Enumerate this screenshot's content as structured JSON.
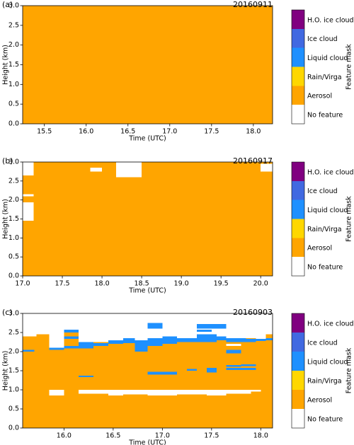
{
  "chart_data": [
    {
      "type": "heatmap",
      "panel_label": "(a)",
      "title": "20160911",
      "xlabel": "Time (UTC)",
      "ylabel": "Height (km)",
      "xlim": [
        15.24,
        18.23
      ],
      "ylim": [
        0,
        3
      ],
      "xticks": [
        15.5,
        {
          "value": 16,
          "label": "16.0"
        },
        16.5,
        {
          "value": 17,
          "label": "17.0"
        },
        17.5,
        {
          "value": 18,
          "label": "18.0"
        }
      ],
      "yticks": [
        {
          "value": 0,
          "label": "0.0"
        },
        0.5,
        {
          "value": 1,
          "label": "1.0"
        },
        1.5,
        {
          "value": 2,
          "label": "2.0"
        },
        2.5,
        {
          "value": 3,
          "label": "3.0"
        }
      ],
      "colorbar": {
        "label": "Feature mask",
        "classes": [
          {
            "label": "No feature",
            "color": "#ffffff"
          },
          {
            "label": "Aerosol",
            "color": "#ffa500"
          },
          {
            "label": "Rain/Virga",
            "color": "#ffd700"
          },
          {
            "label": "Liquid cloud",
            "color": "#1e90ff"
          },
          {
            "label": "Ice cloud",
            "color": "#4169e1"
          },
          {
            "label": "H.O. ice cloud",
            "color": "#800080"
          }
        ]
      },
      "blocks": [
        {
          "x": [
            15.24,
            18.23
          ],
          "y": [
            0,
            3
          ],
          "value": 1
        }
      ]
    },
    {
      "type": "heatmap",
      "panel_label": "(b)",
      "title": "20160917",
      "xlabel": "Time (UTC)",
      "ylabel": "Height (km)",
      "xlim": [
        17.0,
        20.15
      ],
      "ylim": [
        0,
        3
      ],
      "xticks": [
        {
          "value": 17,
          "label": "17.0"
        },
        17.5,
        {
          "value": 18,
          "label": "18.0"
        },
        18.5,
        {
          "value": 19,
          "label": "19.0"
        },
        19.5,
        {
          "value": 20,
          "label": "20.0"
        }
      ],
      "yticks": [
        {
          "value": 0,
          "label": "0.0"
        },
        0.5,
        {
          "value": 1,
          "label": "1.0"
        },
        1.5,
        {
          "value": 2,
          "label": "2.0"
        },
        2.5,
        {
          "value": 3,
          "label": "3.0"
        }
      ],
      "colorbar": {
        "label": "Feature mask",
        "classes": [
          {
            "label": "No feature",
            "color": "#ffffff"
          },
          {
            "label": "Aerosol",
            "color": "#ffa500"
          },
          {
            "label": "Rain/Virga",
            "color": "#ffd700"
          },
          {
            "label": "Liquid cloud",
            "color": "#1e90ff"
          },
          {
            "label": "Ice cloud",
            "color": "#4169e1"
          },
          {
            "label": "H.O. ice cloud",
            "color": "#800080"
          }
        ]
      },
      "blocks": [
        {
          "x": [
            17.0,
            20.15
          ],
          "y": [
            0,
            3
          ],
          "value": 1
        },
        {
          "x": [
            17.0,
            17.14
          ],
          "y": [
            2.65,
            3.0
          ],
          "value": 0
        },
        {
          "x": [
            17.0,
            17.14
          ],
          "y": [
            2.1,
            2.15
          ],
          "value": 0
        },
        {
          "x": [
            17.0,
            17.14
          ],
          "y": [
            1.45,
            1.94
          ],
          "value": 0
        },
        {
          "x": [
            18.18,
            18.5
          ],
          "y": [
            2.6,
            3.0
          ],
          "value": 1
        },
        {
          "x": [
            18.18,
            18.5
          ],
          "y": [
            2.6,
            3.0
          ],
          "value": 0
        },
        {
          "x": [
            17.85,
            18.0
          ],
          "y": [
            2.75,
            2.85
          ],
          "value": 0
        },
        {
          "x": [
            20.0,
            20.15
          ],
          "y": [
            2.75,
            2.95
          ],
          "value": 0
        }
      ]
    },
    {
      "type": "heatmap",
      "panel_label": "(c)",
      "title": "20160903",
      "xlabel": "Time (UTC)",
      "ylabel": "Height (km)",
      "xlim": [
        15.58,
        18.12
      ],
      "ylim": [
        0,
        3
      ],
      "xticks": [
        {
          "value": 16,
          "label": "16.0"
        },
        16.5,
        {
          "value": 17,
          "label": "17.0"
        },
        17.5,
        {
          "value": 18,
          "label": "18.0"
        }
      ],
      "yticks": [
        {
          "value": 0,
          "label": "0.0"
        },
        0.5,
        {
          "value": 1,
          "label": "1.0"
        },
        1.5,
        {
          "value": 2,
          "label": "2.0"
        },
        2.5,
        {
          "value": 3,
          "label": "3.0"
        }
      ],
      "colorbar": {
        "label": "Feature mask",
        "classes": [
          {
            "label": "No feature",
            "color": "#ffffff"
          },
          {
            "label": "Aerosol",
            "color": "#ffa500"
          },
          {
            "label": "Rain/Virga",
            "color": "#ffd700"
          },
          {
            "label": "Liquid cloud",
            "color": "#1e90ff"
          },
          {
            "label": "Ice cloud",
            "color": "#4169e1"
          },
          {
            "label": "H.O. ice cloud",
            "color": "#800080"
          }
        ]
      },
      "blocks": [
        {
          "x": [
            15.58,
            15.72
          ],
          "y": [
            0,
            2.4
          ],
          "value": 1
        },
        {
          "x": [
            15.72,
            15.85
          ],
          "y": [
            0,
            2.45
          ],
          "value": 1
        },
        {
          "x": [
            15.85,
            16.0
          ],
          "y": [
            0,
            2.05
          ],
          "value": 1
        },
        {
          "x": [
            16.0,
            16.15
          ],
          "y": [
            0,
            2.55
          ],
          "value": 1
        },
        {
          "x": [
            16.15,
            16.3
          ],
          "y": [
            0,
            2.25
          ],
          "value": 1
        },
        {
          "x": [
            16.3,
            16.45
          ],
          "y": [
            0,
            2.25
          ],
          "value": 1
        },
        {
          "x": [
            16.45,
            16.6
          ],
          "y": [
            0,
            2.3
          ],
          "value": 1
        },
        {
          "x": [
            16.6,
            16.72
          ],
          "y": [
            0,
            2.35
          ],
          "value": 1
        },
        {
          "x": [
            16.72,
            16.85
          ],
          "y": [
            0,
            2.3
          ],
          "value": 1
        },
        {
          "x": [
            16.85,
            17.0
          ],
          "y": [
            0,
            2.35
          ],
          "value": 1
        },
        {
          "x": [
            17.0,
            17.15
          ],
          "y": [
            0,
            2.4
          ],
          "value": 1
        },
        {
          "x": [
            17.15,
            17.35
          ],
          "y": [
            0,
            2.35
          ],
          "value": 1
        },
        {
          "x": [
            17.35,
            17.55
          ],
          "y": [
            0,
            2.45
          ],
          "value": 1
        },
        {
          "x": [
            17.55,
            17.65
          ],
          "y": [
            0,
            2.4
          ],
          "value": 1
        },
        {
          "x": [
            17.65,
            17.85
          ],
          "y": [
            0,
            2.35
          ],
          "value": 1
        },
        {
          "x": [
            17.85,
            17.95
          ],
          "y": [
            0,
            2.35
          ],
          "value": 1
        },
        {
          "x": [
            17.95,
            18.05
          ],
          "y": [
            0,
            2.3
          ],
          "value": 1
        },
        {
          "x": [
            18.05,
            18.12
          ],
          "y": [
            0,
            2.45
          ],
          "value": 1
        },
        {
          "x": [
            15.58,
            15.7
          ],
          "y": [
            2.0,
            2.05
          ],
          "value": 3
        },
        {
          "x": [
            15.85,
            16.0
          ],
          "y": [
            2.05,
            2.1
          ],
          "value": 3
        },
        {
          "x": [
            16.0,
            16.15
          ],
          "y": [
            2.5,
            2.57
          ],
          "value": 3
        },
        {
          "x": [
            16.0,
            16.15
          ],
          "y": [
            2.33,
            2.4
          ],
          "value": 3
        },
        {
          "x": [
            16.0,
            16.3
          ],
          "y": [
            2.08,
            2.15
          ],
          "value": 3
        },
        {
          "x": [
            16.15,
            16.3
          ],
          "y": [
            2.15,
            2.25
          ],
          "value": 3
        },
        {
          "x": [
            16.3,
            16.45
          ],
          "y": [
            2.15,
            2.22
          ],
          "value": 3
        },
        {
          "x": [
            16.45,
            16.6
          ],
          "y": [
            2.2,
            2.3
          ],
          "value": 3
        },
        {
          "x": [
            16.6,
            16.72
          ],
          "y": [
            2.22,
            2.35
          ],
          "value": 3
        },
        {
          "x": [
            16.72,
            16.85
          ],
          "y": [
            2.0,
            2.3
          ],
          "value": 3
        },
        {
          "x": [
            16.85,
            17.0
          ],
          "y": [
            2.15,
            2.35
          ],
          "value": 3
        },
        {
          "x": [
            16.85,
            17.0
          ],
          "y": [
            2.6,
            2.75
          ],
          "value": 3
        },
        {
          "x": [
            17.0,
            17.15
          ],
          "y": [
            2.2,
            2.4
          ],
          "value": 3
        },
        {
          "x": [
            17.15,
            17.35
          ],
          "y": [
            2.25,
            2.35
          ],
          "value": 3
        },
        {
          "x": [
            17.35,
            17.55
          ],
          "y": [
            2.25,
            2.45
          ],
          "value": 3
        },
        {
          "x": [
            17.35,
            17.5
          ],
          "y": [
            2.52,
            2.57
          ],
          "value": 3
        },
        {
          "x": [
            17.35,
            17.65
          ],
          "y": [
            2.6,
            2.72
          ],
          "value": 3
        },
        {
          "x": [
            17.55,
            17.65
          ],
          "y": [
            2.3,
            2.4
          ],
          "value": 3
        },
        {
          "x": [
            17.65,
            17.85
          ],
          "y": [
            2.25,
            2.35
          ],
          "value": 3
        },
        {
          "x": [
            17.85,
            17.95
          ],
          "y": [
            2.25,
            2.33
          ],
          "value": 3
        },
        {
          "x": [
            17.95,
            18.05
          ],
          "y": [
            2.28,
            2.33
          ],
          "value": 3
        },
        {
          "x": [
            18.05,
            18.12
          ],
          "y": [
            2.3,
            2.35
          ],
          "value": 3
        },
        {
          "x": [
            17.65,
            17.8
          ],
          "y": [
            2.15,
            2.2
          ],
          "value": 0
        },
        {
          "x": [
            17.65,
            17.8
          ],
          "y": [
            1.95,
            2.05
          ],
          "value": 3
        },
        {
          "x": [
            16.15,
            16.3
          ],
          "y": [
            1.33,
            1.37
          ],
          "value": 3
        },
        {
          "x": [
            16.85,
            17.15
          ],
          "y": [
            1.4,
            1.47
          ],
          "value": 3
        },
        {
          "x": [
            17.25,
            17.35
          ],
          "y": [
            1.5,
            1.55
          ],
          "value": 3
        },
        {
          "x": [
            17.45,
            17.55
          ],
          "y": [
            1.45,
            1.57
          ],
          "value": 3
        },
        {
          "x": [
            17.65,
            17.8
          ],
          "y": [
            1.6,
            1.65
          ],
          "value": 3
        },
        {
          "x": [
            17.8,
            17.95
          ],
          "y": [
            1.62,
            1.67
          ],
          "value": 3
        },
        {
          "x": [
            17.65,
            17.95
          ],
          "y": [
            1.52,
            1.57
          ],
          "value": 3
        },
        {
          "x": [
            15.85,
            16.0
          ],
          "y": [
            0.85,
            1.0
          ],
          "value": 0
        },
        {
          "x": [
            16.15,
            16.45
          ],
          "y": [
            0.9,
            1.0
          ],
          "value": 0
        },
        {
          "x": [
            16.45,
            16.6
          ],
          "y": [
            0.85,
            1.0
          ],
          "value": 0
        },
        {
          "x": [
            16.6,
            16.85
          ],
          "y": [
            0.88,
            1.0
          ],
          "value": 0
        },
        {
          "x": [
            16.85,
            17.15
          ],
          "y": [
            0.85,
            1.0
          ],
          "value": 0
        },
        {
          "x": [
            17.15,
            17.45
          ],
          "y": [
            0.88,
            1.0
          ],
          "value": 0
        },
        {
          "x": [
            17.45,
            17.65
          ],
          "y": [
            0.85,
            1.0
          ],
          "value": 0
        },
        {
          "x": [
            17.65,
            17.9
          ],
          "y": [
            0.9,
            1.0
          ],
          "value": 0
        },
        {
          "x": [
            17.9,
            18.0
          ],
          "y": [
            0.95,
            1.0
          ],
          "value": 0
        }
      ]
    }
  ]
}
